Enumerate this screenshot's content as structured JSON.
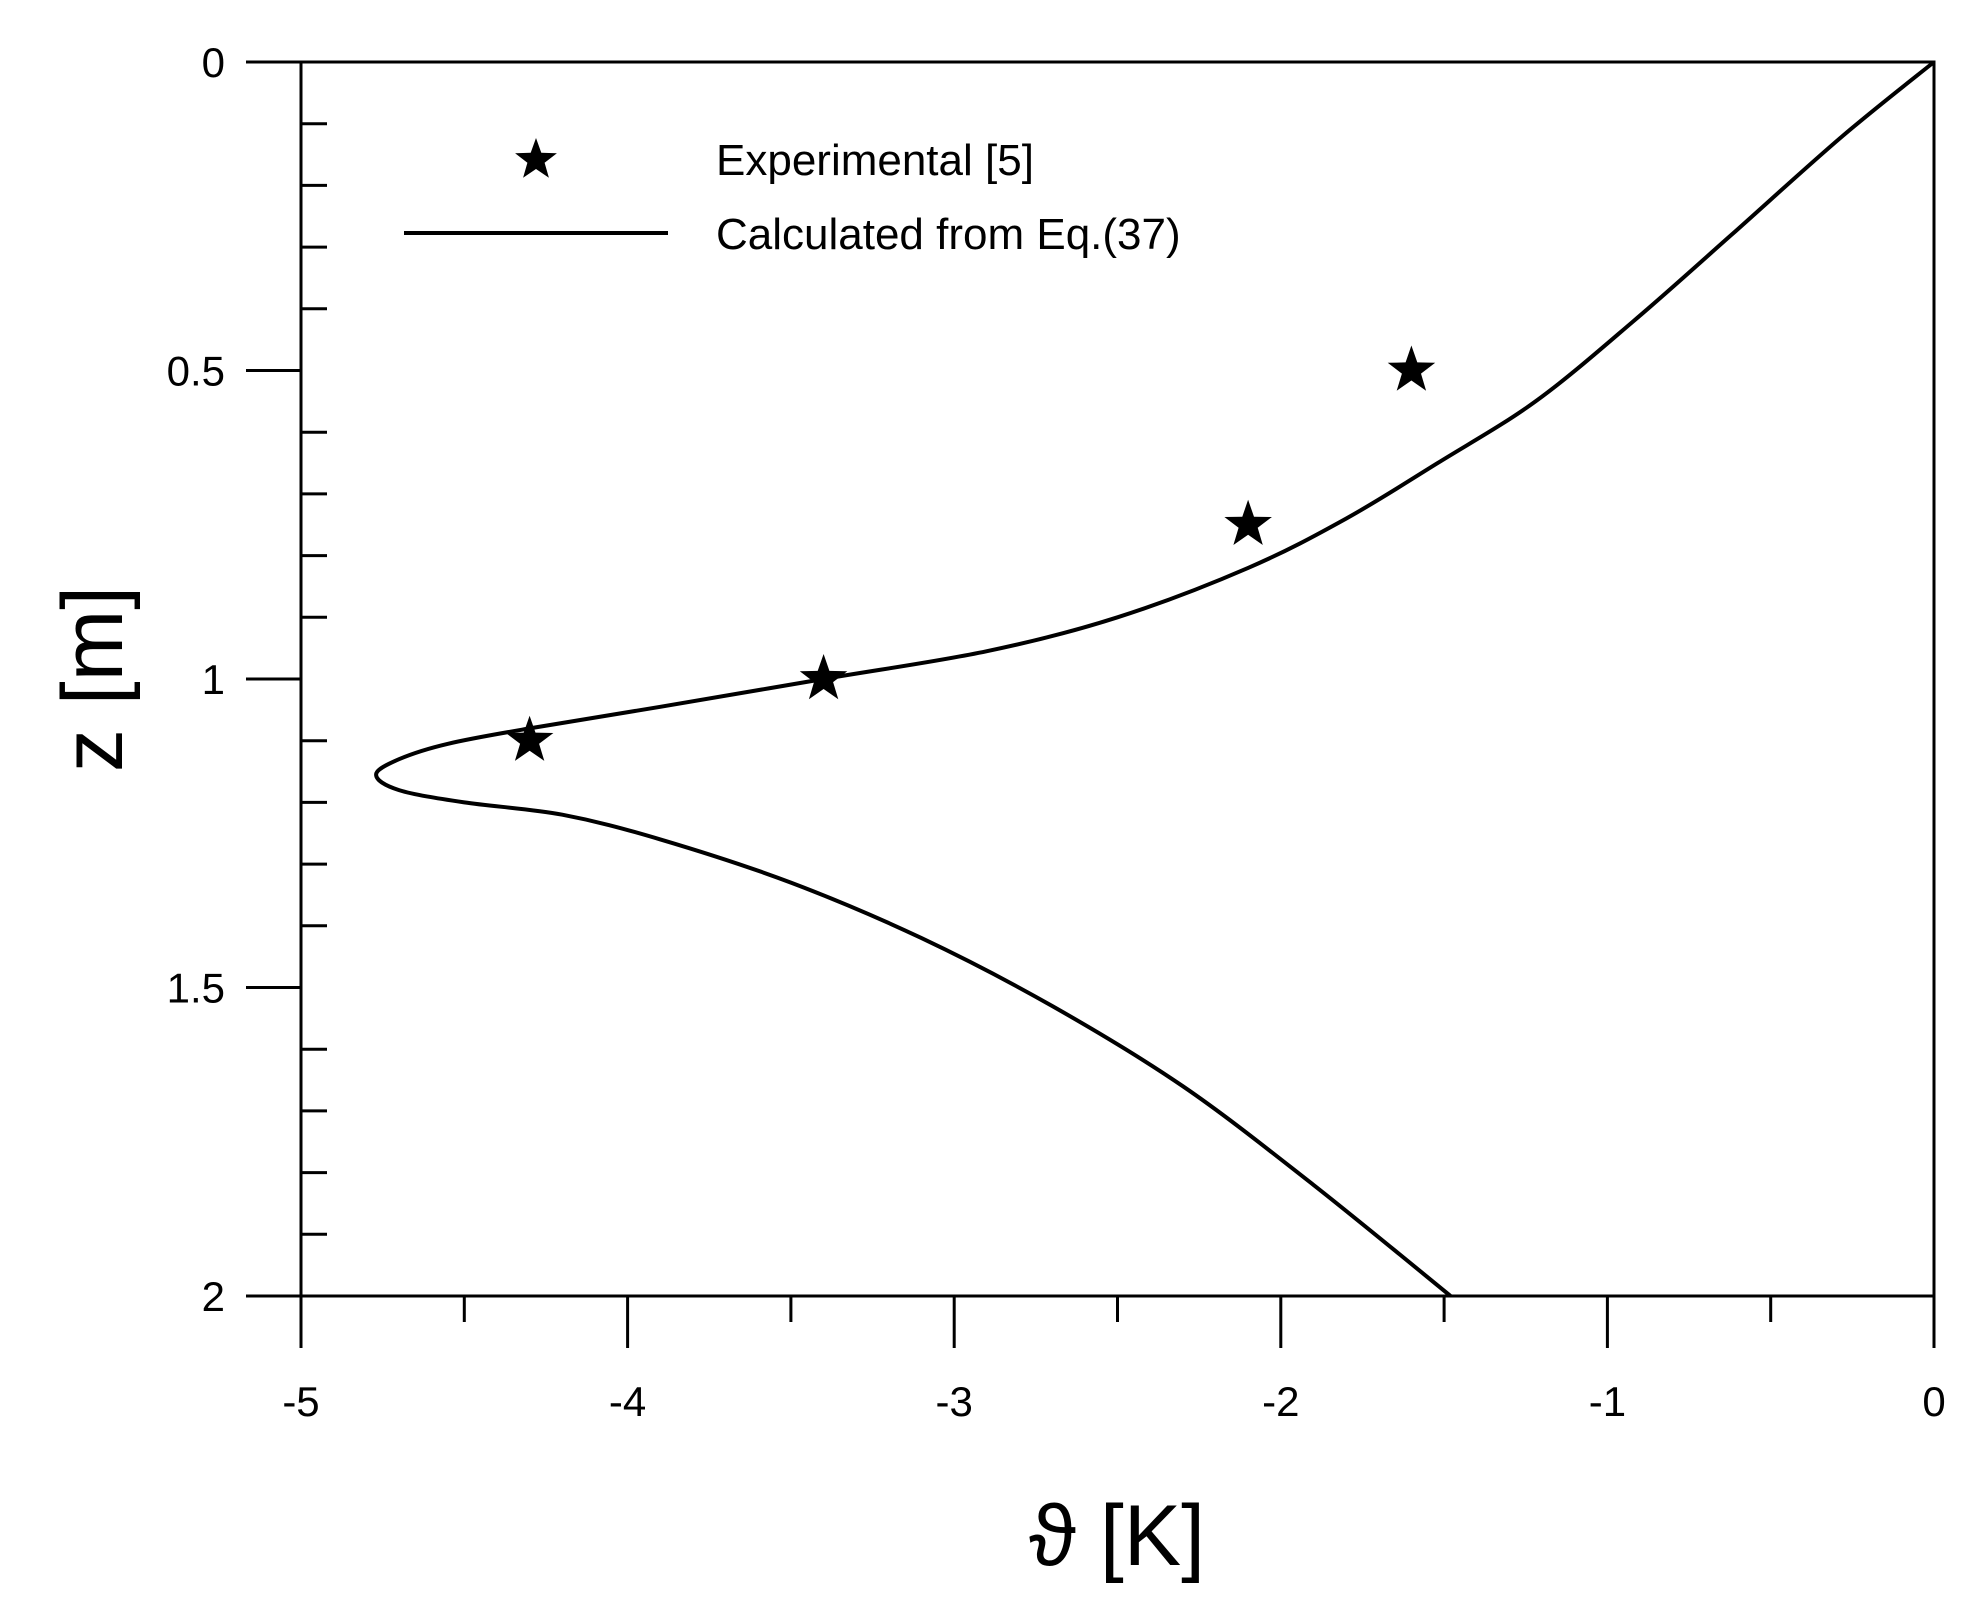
{
  "chart_data": {
    "type": "line",
    "title": "",
    "xlabel": "ϑ [K]",
    "ylabel": "z [m]",
    "xlim": [
      -5,
      0
    ],
    "ylim": [
      0,
      2
    ],
    "y_inverted": true,
    "grid": false,
    "legend_position": "top-left",
    "x_ticks": [
      -5,
      -4,
      -3,
      -2,
      -1,
      0
    ],
    "x_tick_labels": [
      "-5",
      "-4",
      "-3",
      "-2",
      "-1",
      "0"
    ],
    "y_ticks": [
      0,
      0.5,
      1,
      1.5,
      2
    ],
    "y_tick_labels": [
      "0",
      "0.5",
      "1",
      "1.5",
      "2"
    ],
    "legend": {
      "experimental": "Experimental [5]",
      "calculated": "Calculated from Eq.(37)"
    },
    "series": [
      {
        "name": "Experimental [5]",
        "kind": "scatter",
        "marker": "star",
        "points": [
          {
            "x": -1.6,
            "z": 0.5
          },
          {
            "x": -2.1,
            "z": 0.75
          },
          {
            "x": -3.4,
            "z": 1.0
          },
          {
            "x": -4.3,
            "z": 1.1
          }
        ]
      },
      {
        "name": "Calculated from Eq.(37)",
        "kind": "line",
        "points": [
          {
            "x": 0.0,
            "z": 0.0
          },
          {
            "x": -0.28,
            "z": 0.12
          },
          {
            "x": -0.62,
            "z": 0.28
          },
          {
            "x": -0.92,
            "z": 0.42
          },
          {
            "x": -1.22,
            "z": 0.55
          },
          {
            "x": -1.52,
            "z": 0.65
          },
          {
            "x": -1.8,
            "z": 0.74
          },
          {
            "x": -2.1,
            "z": 0.82
          },
          {
            "x": -2.5,
            "z": 0.9
          },
          {
            "x": -2.9,
            "z": 0.955
          },
          {
            "x": -3.4,
            "z": 1.0
          },
          {
            "x": -3.9,
            "z": 1.045
          },
          {
            "x": -4.3,
            "z": 1.08
          },
          {
            "x": -4.55,
            "z": 1.105
          },
          {
            "x": -4.7,
            "z": 1.13
          },
          {
            "x": -4.77,
            "z": 1.155
          },
          {
            "x": -4.7,
            "z": 1.18
          },
          {
            "x": -4.5,
            "z": 1.2
          },
          {
            "x": -4.2,
            "z": 1.22
          },
          {
            "x": -3.9,
            "z": 1.26
          },
          {
            "x": -3.5,
            "z": 1.33
          },
          {
            "x": -3.1,
            "z": 1.42
          },
          {
            "x": -2.7,
            "z": 1.53
          },
          {
            "x": -2.3,
            "z": 1.66
          },
          {
            "x": -1.9,
            "z": 1.82
          },
          {
            "x": -1.48,
            "z": 2.0
          }
        ]
      }
    ]
  }
}
